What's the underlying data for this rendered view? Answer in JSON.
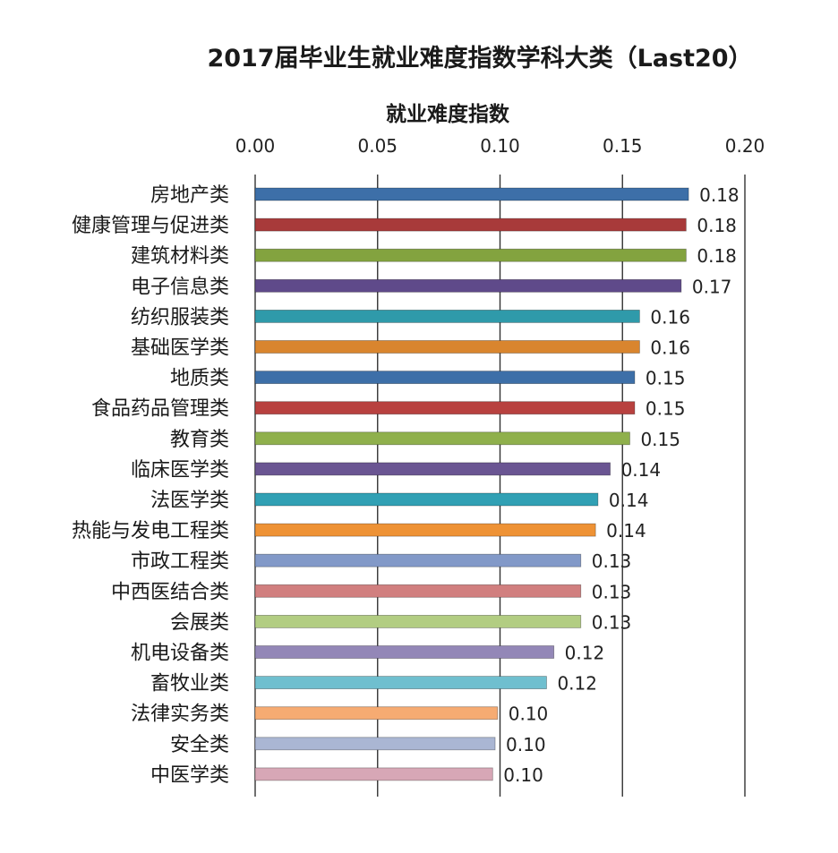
{
  "chart_data": {
    "type": "bar",
    "orientation": "horizontal",
    "title": "2017届毕业生就业难度指数学科大类（Last20）",
    "xlabel": "就业难度指数",
    "ylabel": "",
    "xlim": [
      0,
      0.2
    ],
    "xticks": [
      "0.00",
      "0.05",
      "0.10",
      "0.15",
      "0.20"
    ],
    "grid": "vertical",
    "legend": "none",
    "categories": [
      "房地产类",
      "健康管理与促进类",
      "建筑材料类",
      "电子信息类",
      "纺织服装类",
      "基础医学类",
      "地质类",
      "食品药品管理类",
      "教育类",
      "临床医学类",
      "法医学类",
      "热能与发电工程类",
      "市政工程类",
      "中西医结合类",
      "会展类",
      "机电设备类",
      "畜牧业类",
      "法律实务类",
      "安全类",
      "中医学类"
    ],
    "values": [
      0.177,
      0.176,
      0.176,
      0.174,
      0.157,
      0.157,
      0.155,
      0.155,
      0.153,
      0.145,
      0.14,
      0.139,
      0.133,
      0.133,
      0.133,
      0.122,
      0.119,
      0.099,
      0.098,
      0.097
    ],
    "labels": [
      "0.18",
      "0.18",
      "0.18",
      "0.17",
      "0.16",
      "0.16",
      "0.15",
      "0.15",
      "0.15",
      "0.14",
      "0.14",
      "0.14",
      "0.13",
      "0.13",
      "0.13",
      "0.12",
      "0.12",
      "0.10",
      "0.10",
      "0.10"
    ],
    "colors": [
      "#3d6fa8",
      "#a83a3a",
      "#83a33f",
      "#5f4a8a",
      "#2f9aaa",
      "#d9852e",
      "#3d6fa8",
      "#b8413f",
      "#8fb04c",
      "#6a5592",
      "#31a0b4",
      "#ee9235",
      "#8299c8",
      "#d17f7f",
      "#b2cd82",
      "#9387b7",
      "#6fbfcf",
      "#f6ab72",
      "#aab6d3",
      "#d7a7b6"
    ]
  }
}
